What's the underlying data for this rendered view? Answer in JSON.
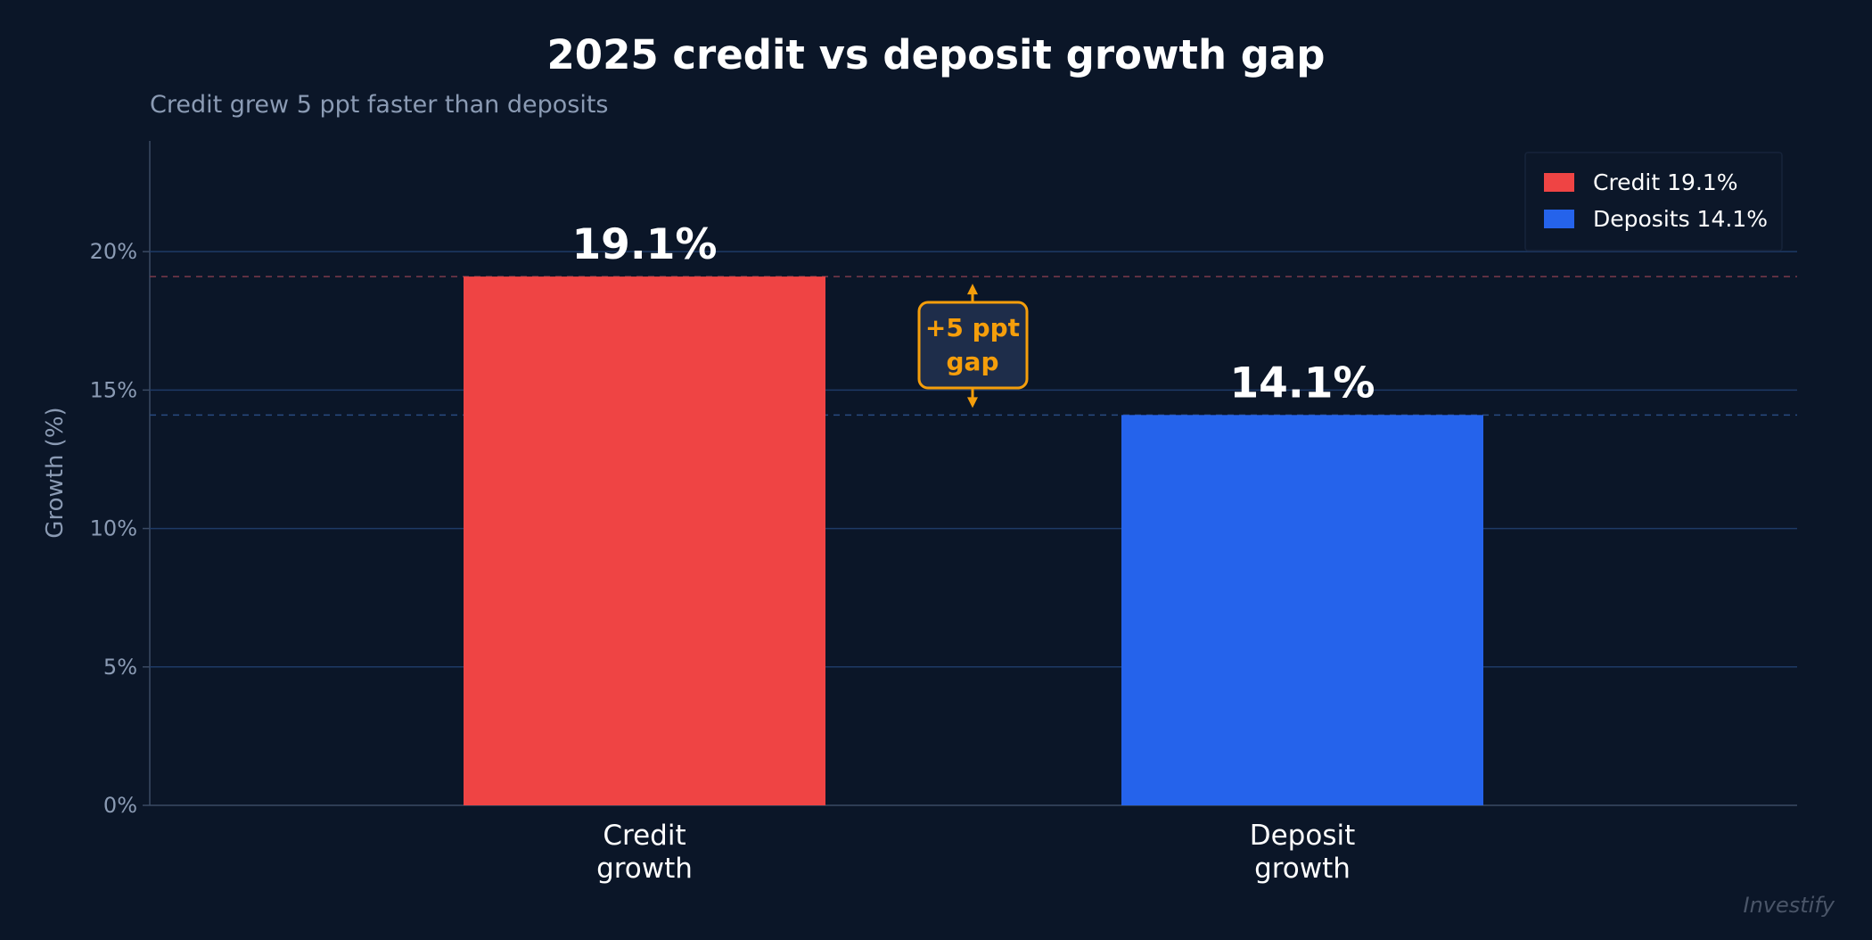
{
  "chart_data": {
    "type": "bar",
    "title": "2025 credit vs deposit growth gap",
    "subtitle": "Credit grew 5 ppt faster than deposits",
    "ylabel": "Growth (%)",
    "xlabel": "",
    "ylim": [
      0,
      24
    ],
    "yticks": [
      0,
      5,
      10,
      15,
      20
    ],
    "ytick_labels": [
      "0%",
      "5%",
      "10%",
      "15%",
      "20%"
    ],
    "grid": true,
    "categories": [
      [
        "Credit",
        "growth"
      ],
      [
        "Deposit",
        "growth"
      ]
    ],
    "values": [
      19.1,
      14.1
    ],
    "data_labels": [
      "19.1%",
      "14.1%"
    ],
    "colors": [
      "#ef4444",
      "#2563eb"
    ],
    "legend": {
      "placement": "top-right",
      "entries": [
        "Credit 19.1%",
        "Deposits 14.1%"
      ]
    },
    "annotation": {
      "lines": [
        "+5 ppt",
        "gap"
      ],
      "color": "#f59e0b",
      "from": 14.1,
      "to": 19.1
    },
    "watermark": "Investify"
  }
}
